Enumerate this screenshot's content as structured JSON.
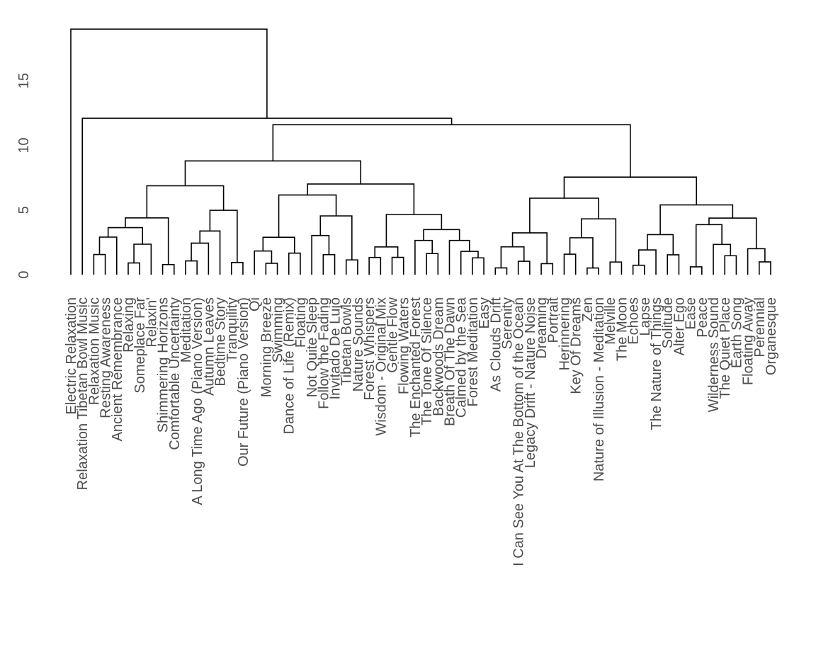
{
  "chart_data": {
    "type": "dendrogram",
    "title": "",
    "xlabel": "",
    "ylabel": "",
    "ylim": [
      0,
      19.5
    ],
    "y_ticks": [
      0,
      5,
      10,
      15
    ],
    "grid": false,
    "leaves": [
      "Electric Relaxation",
      "Relaxation Tibetan Bowl Music",
      "Relaxation Music",
      "Resting Awareness",
      "Ancient Remembrance",
      "Relaxing",
      "Someplace Far",
      "Relaxin'",
      "Shimmering Horizons",
      "Comfortable Uncertainty",
      "Meditation",
      "A Long Time Ago (Piano Version)",
      "Autumn Leaves",
      "Bedtime Story",
      "Tranquility",
      "Our Future (Piano Version)",
      "Qi",
      "Morning Breeze",
      "Swimming",
      "Dance of Life (Remix)",
      "Floating",
      "Not Quite Sleep",
      "Follow the Fading",
      "Invitado De Lujo",
      "Tibetan Bowls",
      "Nature Sounds",
      "Forest Whispers",
      "Wisdom - Original Mix",
      "Gentle Flow",
      "Flowing Waters",
      "The Enchanted Forest",
      "The Tone Of Silence",
      "Backwoods Dream",
      "Breath Of The Dawn",
      "Calmed by the Sea",
      "Forest Meditation",
      "Easy",
      "As Clouds Drift",
      "Serenity",
      "I Can See You At The Bottom of the Ocean",
      "Legacy Drift - Nature Noise",
      "Dreaming",
      "Portrait",
      "Herinnering",
      "Key Of Dreams",
      "Zen",
      "Nature of Illusion - Meditation",
      "Melville",
      "The Moon",
      "Echoes",
      "Lapse",
      "The Nature of Things",
      "Solitude",
      "Alter Ego",
      "Ease",
      "Peace",
      "Wilderness Sound",
      "The Quiet Place",
      "Earth Song",
      "Floating Away",
      "Perennial",
      "Organesque"
    ]
  }
}
